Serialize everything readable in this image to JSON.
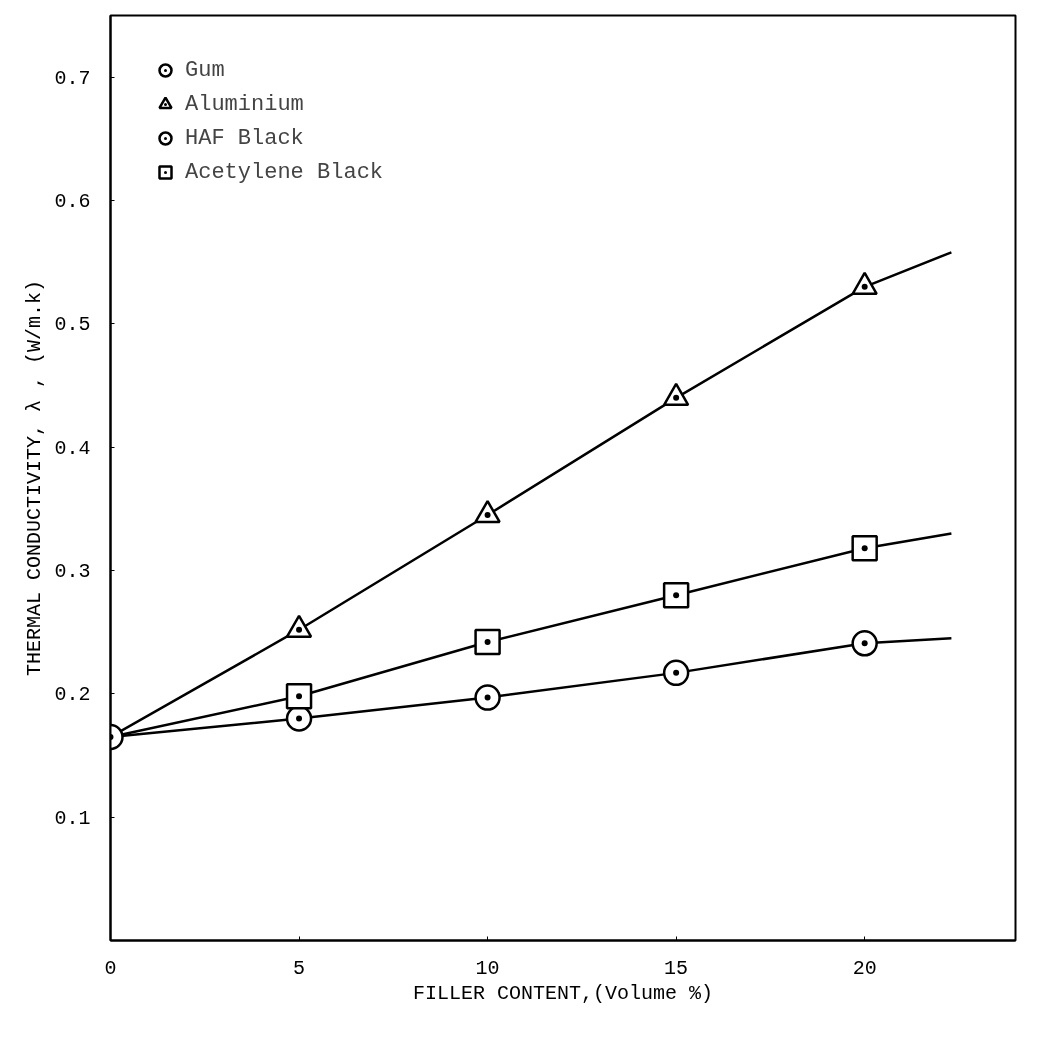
{
  "chart_data": {
    "type": "scatter",
    "xlabel": "FILLER CONTENT,(Volume %)",
    "ylabel": "THERMAL CONDUCTIVITY, λ , (W/m.k)",
    "xlim": [
      0,
      24
    ],
    "ylim": [
      0,
      0.75
    ],
    "xticks": [
      0,
      5,
      10,
      15,
      20
    ],
    "yticks": [
      0.1,
      0.2,
      0.3,
      0.4,
      0.5,
      0.6,
      0.7
    ],
    "grid": false,
    "legend": "top left",
    "series": [
      {
        "type": "line",
        "marker": "none",
        "color": "#000000",
        "x": [
          0,
          5,
          10,
          15,
          20,
          22.3
        ],
        "values": [
          0.165,
          0.252,
          0.345,
          0.44,
          0.53,
          0.558
        ]
      },
      {
        "type": "line",
        "marker": "none",
        "color": "#000000",
        "x": [
          0,
          5,
          10,
          15,
          20,
          22.3
        ],
        "values": [
          0.165,
          0.198,
          0.242,
          0.28,
          0.318,
          0.33
        ]
      },
      {
        "type": "line",
        "marker": "none",
        "color": "#000000",
        "x": [
          0,
          5,
          10,
          15,
          20,
          22.3
        ],
        "values": [
          0.165,
          0.18,
          0.197,
          0.217,
          0.241,
          0.245
        ]
      },
      {
        "name": "Gum",
        "marker": "circle",
        "color": "#000000",
        "x": [
          0
        ],
        "values": [
          0.165
        ]
      },
      {
        "name": "Aluminium",
        "marker": "triangle",
        "color": "#000000",
        "x": [
          5,
          10,
          15,
          20
        ],
        "values": [
          0.252,
          0.345,
          0.44,
          0.53
        ]
      },
      {
        "name": "HAF Black",
        "marker": "circle",
        "color": "#000000",
        "x": [
          5,
          10,
          15,
          20
        ],
        "values": [
          0.18,
          0.197,
          0.217,
          0.241
        ]
      },
      {
        "name": "Acetylene Black",
        "marker": "square",
        "color": "#000000",
        "x": [
          5,
          10,
          15,
          20
        ],
        "values": [
          0.198,
          0.242,
          0.28,
          0.318
        ]
      }
    ]
  }
}
